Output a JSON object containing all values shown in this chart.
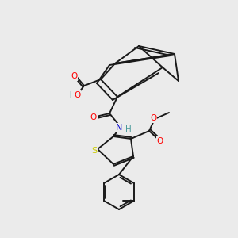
{
  "bg_color": "#ebebeb",
  "bond_color": "#1a1a1a",
  "atom_colors": {
    "O": "#ff0000",
    "N": "#0000cd",
    "S": "#cccc00",
    "H": "#4a9a9a",
    "C": "#1a1a1a"
  },
  "figsize": [
    3.0,
    3.0
  ],
  "dpi": 100
}
